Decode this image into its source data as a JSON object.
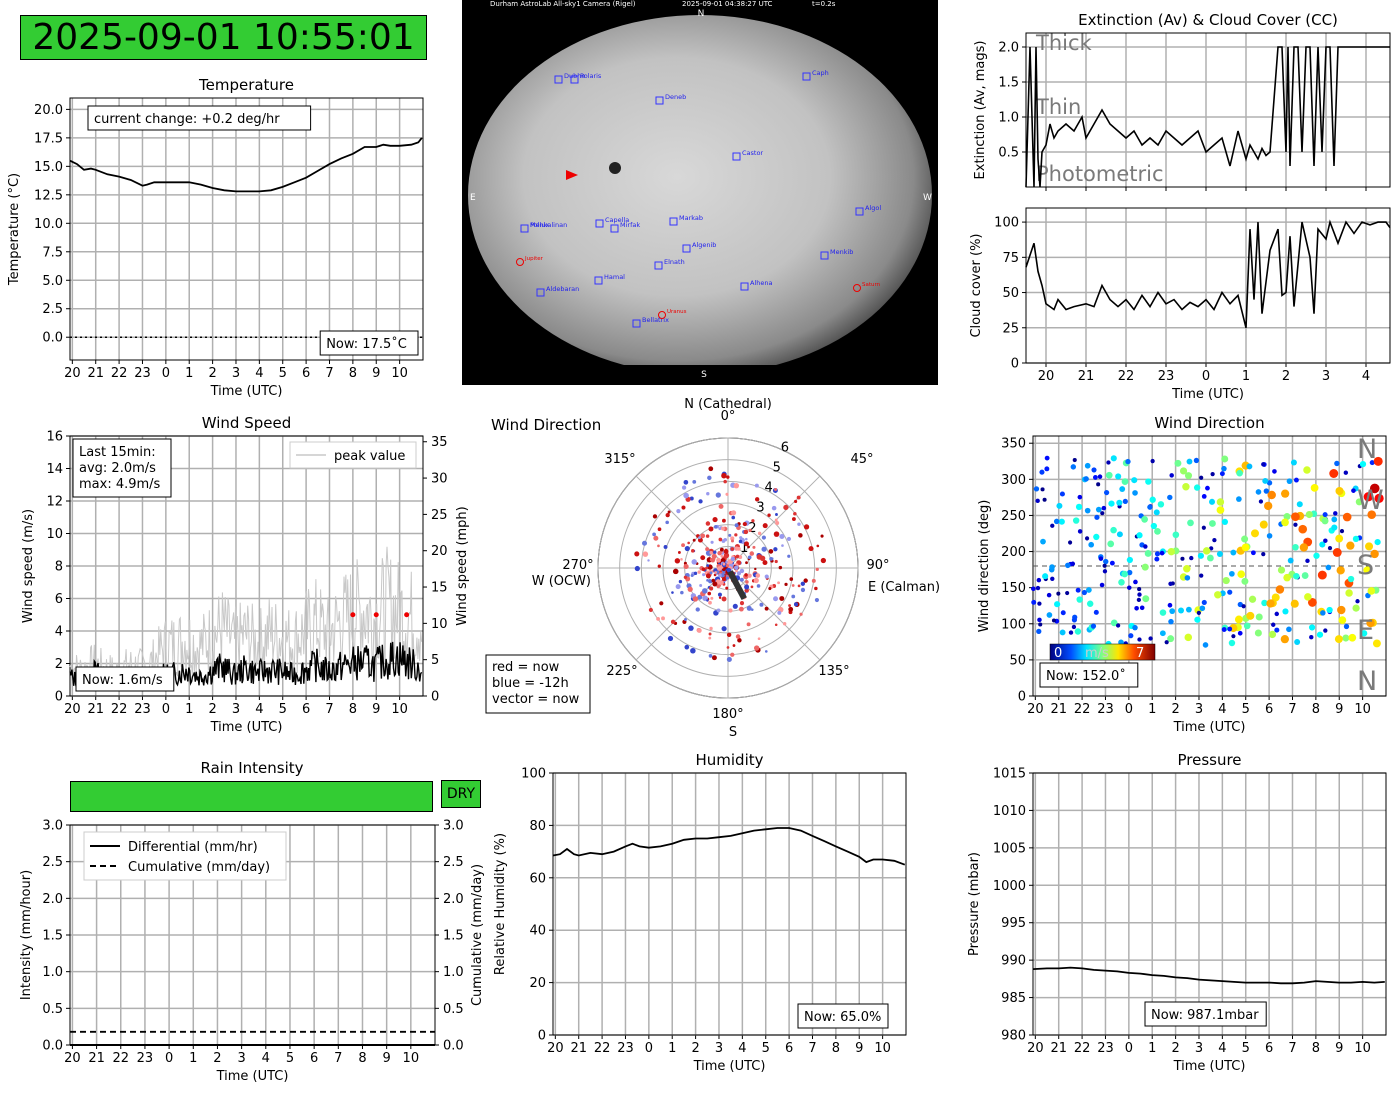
{
  "clock": {
    "datetime": "2025-09-01 10:55:01"
  },
  "allsky": {
    "header": "Durham AstroLab All-sky1 Camera (Rigel)",
    "timestamp": "2025-09-01 04:38:27 UTC",
    "exposure": "t=0.2s",
    "compass": {
      "n": "N",
      "s": "S",
      "e": "E",
      "w": "W"
    },
    "stars": [
      "Dubhe",
      "Polaris",
      "Deneb",
      "Caph",
      "Castor",
      "Pollux",
      "Menkalinan",
      "Capella",
      "Mirfak",
      "Markab",
      "Algol",
      "Algenib",
      "Menkib",
      "Elnath",
      "Hamal",
      "Alhena",
      "Aldebaran",
      "Bellatrix"
    ],
    "planets": [
      "Jupiter",
      "Uranus",
      "Saturn"
    ]
  },
  "rain": {
    "status": "DRY"
  },
  "chart_data": [
    {
      "id": "temperature",
      "type": "line",
      "title": "Temperature",
      "xlabel": "Time (UTC)",
      "ylabel": "Temperature (°C)",
      "xticks": [
        "20",
        "21",
        "22",
        "23",
        "0",
        "1",
        "2",
        "3",
        "4",
        "5",
        "6",
        "7",
        "8",
        "9",
        "10"
      ],
      "xrange_hours": [
        19.9,
        35.0
      ],
      "ylim": [
        -2,
        21
      ],
      "yticks": [
        0.0,
        2.5,
        5.0,
        7.5,
        10.0,
        12.5,
        15.0,
        17.5,
        20.0
      ],
      "zero_line": "dotted",
      "x_hours": [
        19.9,
        20.2,
        20.5,
        20.8,
        21.0,
        21.5,
        22.0,
        22.5,
        23.0,
        23.2,
        23.5,
        24.0,
        24.5,
        25.0,
        25.5,
        26.0,
        26.5,
        27.0,
        27.5,
        28.0,
        28.5,
        29.0,
        29.5,
        30.0,
        30.5,
        31.0,
        31.5,
        32.0,
        32.5,
        33.0,
        33.3,
        33.6,
        34.0,
        34.5,
        34.8,
        34.95
      ],
      "y_values": [
        15.5,
        15.2,
        14.7,
        14.8,
        14.7,
        14.3,
        14.1,
        13.8,
        13.3,
        13.4,
        13.6,
        13.6,
        13.6,
        13.6,
        13.4,
        13.1,
        12.9,
        12.8,
        12.8,
        12.8,
        12.9,
        13.2,
        13.6,
        14.0,
        14.6,
        15.2,
        15.7,
        16.1,
        16.7,
        16.7,
        16.9,
        16.8,
        16.8,
        16.9,
        17.1,
        17.5
      ],
      "annotation_change": "current change: +0.2 deg/hr",
      "annotation_now": "Now: 17.5˚C"
    },
    {
      "id": "extinction",
      "type": "line",
      "title": "Extinction (Av) & Cloud Cover (CC)",
      "ylabel": "Extinction (Av, mags)",
      "ylim": [
        0,
        2.2
      ],
      "yticks": [
        0.5,
        1.0,
        1.5,
        2.0
      ],
      "xrange_hours": [
        19.5,
        28.6
      ],
      "bands": [
        "Thick",
        "Thin",
        "Photometric"
      ],
      "x_hours": [
        19.5,
        19.6,
        19.7,
        19.75,
        19.8,
        19.85,
        19.9,
        20.0,
        20.1,
        20.2,
        20.3,
        20.5,
        20.7,
        20.9,
        21.0,
        21.2,
        21.4,
        21.6,
        21.8,
        22.0,
        22.2,
        22.4,
        22.6,
        22.8,
        23.0,
        23.2,
        23.4,
        23.6,
        23.8,
        24.0,
        24.2,
        24.4,
        24.6,
        24.8,
        25.0,
        25.1,
        25.2,
        25.3,
        25.4,
        25.5,
        25.6,
        25.8,
        25.9,
        26.0,
        26.05,
        26.1,
        26.2,
        26.3,
        26.4,
        26.5,
        26.6,
        26.7,
        26.8,
        26.9,
        27.0,
        27.1,
        27.2,
        27.3,
        27.4,
        27.5,
        27.6,
        27.7,
        27.8,
        28.0,
        28.2,
        28.4,
        28.6
      ],
      "y_values": [
        0.0,
        2.0,
        0.0,
        2.0,
        0.4,
        0.0,
        0.5,
        0.6,
        0.9,
        0.7,
        0.8,
        0.9,
        0.8,
        1.0,
        0.7,
        0.9,
        1.1,
        0.9,
        0.8,
        0.7,
        0.8,
        0.6,
        0.7,
        0.6,
        0.8,
        0.7,
        0.6,
        0.7,
        0.8,
        0.5,
        0.6,
        0.7,
        0.3,
        0.8,
        0.4,
        0.6,
        0.5,
        0.4,
        0.55,
        0.45,
        0.5,
        2.0,
        2.0,
        0.5,
        2.0,
        0.3,
        2.0,
        2.0,
        0.5,
        2.0,
        2.0,
        0.3,
        2.0,
        0.5,
        2.0,
        2.0,
        0.3,
        2.0,
        2.0,
        2.0,
        2.0,
        2.0,
        2.0,
        2.0,
        2.0,
        2.0,
        2.0
      ]
    },
    {
      "id": "cloud_cover",
      "type": "line",
      "ylabel": "Cloud cover (%)",
      "xlabel": "Time (UTC)",
      "xticks": [
        "20",
        "21",
        "22",
        "23",
        "0",
        "1",
        "2",
        "3",
        "4"
      ],
      "xrange_hours": [
        19.5,
        28.6
      ],
      "ylim": [
        0,
        110
      ],
      "yticks": [
        0,
        25,
        50,
        75,
        100
      ],
      "x_hours": [
        19.5,
        19.7,
        19.8,
        19.9,
        20.0,
        20.1,
        20.2,
        20.3,
        20.5,
        20.7,
        21.0,
        21.2,
        21.4,
        21.6,
        21.8,
        22.0,
        22.2,
        22.4,
        22.6,
        22.8,
        23.0,
        23.2,
        23.4,
        23.6,
        23.8,
        24.0,
        24.2,
        24.4,
        24.6,
        24.8,
        25.0,
        25.1,
        25.2,
        25.3,
        25.4,
        25.6,
        25.8,
        25.9,
        26.0,
        26.1,
        26.2,
        26.4,
        26.6,
        26.7,
        26.8,
        27.0,
        27.1,
        27.3,
        27.5,
        27.7,
        27.9,
        28.1,
        28.3,
        28.5,
        28.6
      ],
      "y_values": [
        68,
        85,
        65,
        55,
        42,
        40,
        38,
        45,
        38,
        40,
        42,
        40,
        55,
        45,
        40,
        45,
        38,
        48,
        40,
        50,
        42,
        45,
        38,
        43,
        40,
        45,
        38,
        50,
        42,
        48,
        25,
        95,
        45,
        100,
        35,
        80,
        95,
        48,
        50,
        90,
        40,
        100,
        75,
        35,
        95,
        88,
        100,
        85,
        100,
        92,
        100,
        98,
        100,
        100,
        96
      ]
    },
    {
      "id": "wind_speed",
      "type": "line",
      "title": "Wind Speed",
      "xlabel": "Time (UTC)",
      "ylabel": "Wind speed (m/s)",
      "ylabel_right": "Wind speed (mph)",
      "xticks": [
        "20",
        "21",
        "22",
        "23",
        "0",
        "1",
        "2",
        "3",
        "4",
        "5",
        "6",
        "7",
        "8",
        "9",
        "10"
      ],
      "xrange_hours": [
        19.9,
        35.0
      ],
      "ylim": [
        0,
        16
      ],
      "yticks": [
        0,
        2,
        4,
        6,
        8,
        10,
        12,
        14,
        16
      ],
      "yticks_right": [
        0,
        5,
        10,
        15,
        20,
        25,
        30,
        35
      ],
      "legend": "peak value",
      "stats_title": "Last 15min:",
      "stats_avg": "avg: 2.0m/s",
      "stats_max": "max: 4.9m/s",
      "annotation_now": "Now: 1.6m/s",
      "x_hours": [
        19.9,
        20.5,
        21.0,
        21.5,
        22.0,
        22.5,
        23.0,
        23.5,
        24.0,
        24.5,
        25.0,
        25.5,
        26.0,
        26.5,
        27.0,
        27.5,
        28.0,
        28.5,
        29.0,
        29.5,
        30.0,
        30.5,
        31.0,
        31.5,
        32.0,
        32.5,
        33.0,
        33.5,
        34.0,
        34.5,
        34.95
      ],
      "series": [
        {
          "name": "avg",
          "values": [
            1.2,
            0.8,
            1.5,
            1.2,
            1.0,
            0.9,
            1.1,
            1.0,
            1.3,
            1.4,
            1.6,
            1.2,
            1.5,
            1.8,
            1.3,
            1.7,
            1.4,
            1.6,
            1.5,
            1.3,
            1.6,
            1.9,
            1.5,
            1.8,
            2.0,
            2.1,
            1.9,
            2.2,
            2.4,
            2.0,
            1.6
          ]
        },
        {
          "name": "peak value",
          "values": [
            1.8,
            1.6,
            2.0,
            1.7,
            1.5,
            1.9,
            1.8,
            2.1,
            3.0,
            3.2,
            3.5,
            3.0,
            3.6,
            4.2,
            3.3,
            3.8,
            3.2,
            3.9,
            3.6,
            3.4,
            4.0,
            4.5,
            3.8,
            4.6,
            5.0,
            5.4,
            4.8,
            5.6,
            5.2,
            4.9,
            4.4
          ]
        }
      ],
      "peak_markers_x_hours": [
        32.0,
        33.0,
        34.3
      ],
      "peak_markers_y": [
        5.0,
        5.0,
        5.0
      ]
    },
    {
      "id": "wind_polar",
      "type": "scatter",
      "title": "Wind Direction",
      "rlim": [
        0,
        6
      ],
      "rticks": [
        "1",
        "2",
        "3",
        "4",
        "5",
        "6"
      ],
      "angle_labels": [
        "0°",
        "45°",
        "90°",
        "135°",
        "180°",
        "225°",
        "270°",
        "315°"
      ],
      "north_label": "N (Cathedral)",
      "east_label": "E (Calman)",
      "south_label": "S",
      "west_label": "W (OCW)",
      "legend_red": "red = now",
      "legend_blue": "blue = -12h",
      "legend_vector": "vector = now",
      "vector_deg": 152,
      "vector_speed": 1.6
    },
    {
      "id": "wind_direction_time",
      "type": "scatter",
      "title": "Wind Direction",
      "xlabel": "Time (UTC)",
      "ylabel": "Wind direction (deg)",
      "xticks": [
        "20",
        "21",
        "22",
        "23",
        "0",
        "1",
        "2",
        "3",
        "4",
        "5",
        "6",
        "7",
        "8",
        "9",
        "10"
      ],
      "xrange_hours": [
        19.9,
        35.0
      ],
      "ylim": [
        0,
        360
      ],
      "yticks": [
        0,
        50,
        100,
        150,
        200,
        250,
        300,
        350
      ],
      "compass_labels": [
        "N",
        "W",
        "S",
        "E",
        "N"
      ],
      "colorbar_min": "0",
      "colorbar_unit": "m/s",
      "colorbar_max": "7",
      "annotation_now": "Now: 152.0˚"
    },
    {
      "id": "rain",
      "type": "line",
      "title": "Rain Intensity",
      "xlabel": "Time (UTC)",
      "ylabel": "Intensity (mm/hour)",
      "ylabel_right": "Cumulative (mm/day)",
      "xticks": [
        "20",
        "21",
        "22",
        "23",
        "0",
        "1",
        "2",
        "3",
        "4",
        "5",
        "6",
        "7",
        "8",
        "9",
        "10"
      ],
      "xrange_hours": [
        19.9,
        35.0
      ],
      "ylim": [
        0,
        3.0
      ],
      "yticks": [
        0.0,
        0.5,
        1.0,
        1.5,
        2.0,
        2.5,
        3.0
      ],
      "series": [
        {
          "name": "Differential (mm/hr)",
          "values": [
            0.0,
            0.0
          ]
        },
        {
          "name": "Cumulative (mm/day)",
          "values": [
            0.18,
            0.18
          ]
        }
      ],
      "x_hours": [
        19.9,
        35.0
      ]
    },
    {
      "id": "humidity",
      "type": "line",
      "title": "Humidity",
      "xlabel": "Time (UTC)",
      "ylabel": "Relative Humidity (%)",
      "xticks": [
        "20",
        "21",
        "22",
        "23",
        "0",
        "1",
        "2",
        "3",
        "4",
        "5",
        "6",
        "7",
        "8",
        "9",
        "10"
      ],
      "xrange_hours": [
        19.9,
        35.0
      ],
      "ylim": [
        0,
        100
      ],
      "yticks": [
        0,
        20,
        40,
        60,
        80,
        100
      ],
      "annotation_now": "Now: 65.0%",
      "x_hours": [
        19.9,
        20.2,
        20.5,
        20.8,
        21.0,
        21.5,
        22.0,
        22.5,
        23.0,
        23.3,
        23.6,
        24.0,
        24.5,
        25.0,
        25.5,
        26.0,
        26.5,
        27.0,
        27.5,
        28.0,
        28.5,
        29.0,
        29.5,
        30.0,
        30.5,
        31.0,
        31.5,
        32.0,
        32.5,
        33.0,
        33.3,
        33.6,
        34.0,
        34.5,
        34.95
      ],
      "y_values": [
        68.5,
        69,
        71,
        69,
        68.5,
        69.5,
        69,
        70,
        72,
        73,
        72,
        71.5,
        72,
        73,
        74.5,
        75,
        75,
        75.5,
        76,
        77,
        78,
        78.5,
        79,
        79,
        78,
        76,
        74,
        72,
        70,
        68,
        66,
        67,
        67,
        66.5,
        65
      ]
    },
    {
      "id": "pressure",
      "type": "line",
      "title": "Pressure",
      "xlabel": "Time (UTC)",
      "ylabel": "Pressure (mbar)",
      "xticks": [
        "20",
        "21",
        "22",
        "23",
        "0",
        "1",
        "2",
        "3",
        "4",
        "5",
        "6",
        "7",
        "8",
        "9",
        "10"
      ],
      "xrange_hours": [
        19.9,
        35.0
      ],
      "ylim": [
        980,
        1015
      ],
      "yticks": [
        980,
        985,
        990,
        995,
        1000,
        1005,
        1010,
        1015
      ],
      "annotation_now": "Now: 987.1mbar",
      "x_hours": [
        19.9,
        20.5,
        21.0,
        21.5,
        22.0,
        22.5,
        23.0,
        23.5,
        24.0,
        24.5,
        25.0,
        25.5,
        26.0,
        26.5,
        27.0,
        27.5,
        28.0,
        28.5,
        29.0,
        29.5,
        30.0,
        30.5,
        31.0,
        31.5,
        32.0,
        32.5,
        33.0,
        33.5,
        34.0,
        34.5,
        34.95
      ],
      "y_values": [
        988.8,
        988.9,
        988.9,
        989.0,
        988.9,
        988.7,
        988.6,
        988.5,
        988.3,
        988.2,
        988.0,
        987.9,
        987.7,
        987.6,
        987.4,
        987.3,
        987.2,
        987.1,
        987.0,
        987.0,
        987.0,
        986.9,
        986.9,
        987.0,
        987.2,
        987.1,
        987.0,
        987.0,
        987.1,
        987.0,
        987.1
      ]
    }
  ]
}
